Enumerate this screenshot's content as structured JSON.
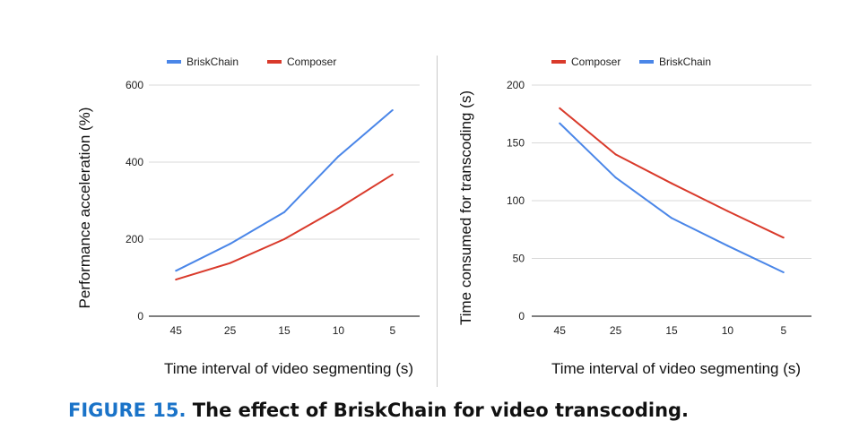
{
  "caption": {
    "label": "FIGURE 15.",
    "text": "The effect of BriskChain for video transcoding."
  },
  "colors": {
    "briskchain": "#4a86e8",
    "composer": "#d93a2b",
    "grid": "#d9d9d9",
    "axis": "#333333",
    "caption_label": "#1a73c8"
  },
  "chart_data": [
    {
      "type": "line",
      "categories": [
        "45",
        "25",
        "15",
        "10",
        "5"
      ],
      "series": [
        {
          "name": "BriskChain",
          "color": "#4a86e8",
          "values": [
            118,
            188,
            270,
            415,
            535
          ]
        },
        {
          "name": "Composer",
          "color": "#d93a2b",
          "values": [
            95,
            138,
            200,
            280,
            368
          ]
        }
      ],
      "legend_order": [
        "BriskChain",
        "Composer"
      ],
      "xlabel": "Time interval of video segmenting (s)",
      "ylabel": "Performance acceleration (%)",
      "ylim": [
        0,
        600
      ],
      "yticks": [
        0,
        200,
        400,
        600
      ],
      "grid": true,
      "legend": "top"
    },
    {
      "type": "line",
      "categories": [
        "45",
        "25",
        "15",
        "10",
        "5"
      ],
      "series": [
        {
          "name": "Composer",
          "color": "#d93a2b",
          "values": [
            180,
            140,
            115,
            91,
            68
          ]
        },
        {
          "name": "BriskChain",
          "color": "#4a86e8",
          "values": [
            167,
            120,
            85,
            61,
            38
          ]
        }
      ],
      "legend_order": [
        "Composer",
        "BriskChain"
      ],
      "xlabel": "Time interval of video segmenting (s)",
      "ylabel": "Time consumed for transcoding (s)",
      "ylim": [
        0,
        200
      ],
      "yticks": [
        0,
        50,
        100,
        150,
        200
      ],
      "grid": true,
      "legend": "top"
    }
  ]
}
